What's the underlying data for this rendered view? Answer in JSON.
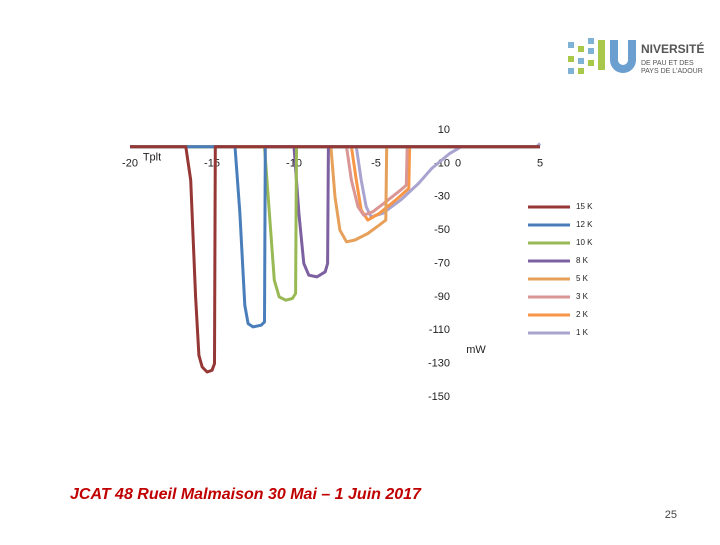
{
  "chart_data": {
    "type": "line",
    "x_label": "Tplt",
    "y_label": "mW",
    "xlim": [
      -20,
      5
    ],
    "ylim": [
      -150,
      10
    ],
    "xticks": [
      -20,
      -15,
      -10,
      -5,
      0,
      5
    ],
    "yticks": [
      10,
      -10,
      -30,
      -50,
      -70,
      -90,
      -110,
      -130,
      -150
    ],
    "legend": "right",
    "series": [
      {
        "name": "15 K",
        "color": "#953735",
        "x": [
          -20,
          -16.6,
          -16.3,
          -16.0,
          -15.8,
          -15.6,
          -15.3,
          -15.0,
          -14.85,
          -14.8,
          5
        ],
        "values": [
          0,
          0,
          -20,
          -90,
          -125,
          -132,
          -135,
          -134,
          -130,
          0,
          0
        ]
      },
      {
        "name": "12 K",
        "color": "#4a7ebb",
        "x": [
          -20,
          -13.6,
          -13.3,
          -13.0,
          -12.8,
          -12.5,
          -12.0,
          -11.8,
          -11.75,
          5
        ],
        "values": [
          0,
          0,
          -40,
          -95,
          -106,
          -108,
          -107,
          -105,
          0,
          0
        ]
      },
      {
        "name": "10 K",
        "color": "#98b954",
        "x": [
          -20,
          -11.8,
          -11.5,
          -11.2,
          -10.9,
          -10.5,
          -10.1,
          -9.9,
          -9.85,
          5
        ],
        "values": [
          0,
          0,
          -40,
          -80,
          -90,
          -92,
          -91,
          -88,
          0,
          0
        ]
      },
      {
        "name": "8 K",
        "color": "#7d60a0",
        "x": [
          -20,
          -10.0,
          -9.7,
          -9.4,
          -9.1,
          -8.6,
          -8.1,
          -7.95,
          -7.9,
          5
        ],
        "values": [
          0,
          0,
          -40,
          -70,
          -77,
          -78,
          -75,
          -70,
          0,
          0
        ]
      },
      {
        "name": "5 K",
        "color": "#e6a05a",
        "x": [
          -20,
          -7.75,
          -7.5,
          -7.2,
          -6.8,
          -6.3,
          -5.5,
          -4.8,
          -4.4,
          -4.35,
          5
        ],
        "values": [
          0,
          0,
          -30,
          -50,
          -57,
          -56,
          -52,
          -47,
          -44,
          0,
          0
        ]
      },
      {
        "name": "3 K",
        "color": "#d99694",
        "x": [
          -20,
          -6.8,
          -6.5,
          -6.1,
          -5.75,
          -5.2,
          -4.4,
          -3.5,
          -3.15,
          -3.1,
          5
        ],
        "values": [
          0,
          0,
          -20,
          -36,
          -41,
          -39,
          -33,
          -26,
          -23,
          0,
          0
        ]
      },
      {
        "name": "2 K",
        "color": "#f79646",
        "x": [
          -20,
          -6.5,
          -6.2,
          -5.9,
          -5.5,
          -4.8,
          -3.8,
          -3.0,
          -2.95,
          5
        ],
        "values": [
          0,
          0,
          -20,
          -38,
          -44,
          -40,
          -32,
          -25,
          0,
          0
        ]
      },
      {
        "name": "1 K",
        "color": "#a9a4cf",
        "x": [
          -20,
          -6.2,
          -5.9,
          -5.6,
          -5.3,
          -4.6,
          -3.5,
          -2.4,
          -1.6,
          -0.5,
          0.2,
          4.8,
          5
        ],
        "values": [
          0,
          0,
          -20,
          -36,
          -42,
          -40,
          -32,
          -22,
          -13,
          -4,
          0,
          0,
          2
        ]
      }
    ]
  },
  "logo": {
    "name": "NIVERSITÉ",
    "line2": "DE PAU ET DES",
    "line3": "PAYS DE L'ADOUR"
  },
  "footer": "JCAT 48 Rueil Malmaison 30 Mai – 1 Juin 2017",
  "page_number": "25"
}
